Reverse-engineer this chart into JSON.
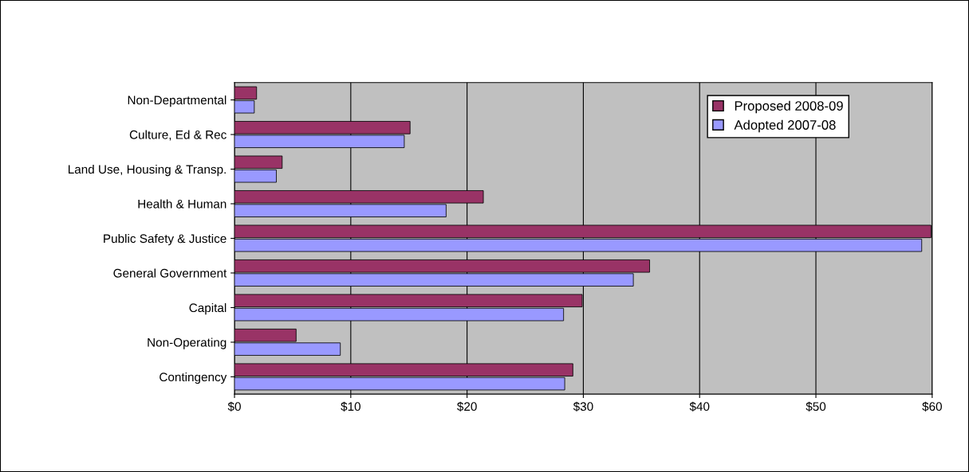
{
  "chart_data": {
    "type": "bar",
    "orientation": "horizontal",
    "categories": [
      "Non-Departmental",
      "Culture, Ed & Rec",
      "Land Use, Housing & Transp.",
      "Health & Human",
      "Public Safety & Justice",
      "General Government",
      "Capital",
      "Non-Operating",
      "Contingency"
    ],
    "series": [
      {
        "name": "Proposed 2008-09",
        "color": "#993366",
        "values": [
          1.9,
          15.1,
          4.1,
          21.4,
          59.9,
          35.7,
          29.9,
          5.3,
          29.1
        ]
      },
      {
        "name": "Adopted 2007-08",
        "color": "#9999ff",
        "values": [
          1.7,
          14.6,
          3.6,
          18.2,
          59.1,
          34.3,
          28.3,
          9.1,
          28.4
        ]
      }
    ],
    "xlim": [
      0,
      60
    ],
    "xticks": [
      {
        "value": 0,
        "label": "$0"
      },
      {
        "value": 10,
        "label": "$10"
      },
      {
        "value": 20,
        "label": "$20"
      },
      {
        "value": 30,
        "label": "$30"
      },
      {
        "value": 40,
        "label": "$40"
      },
      {
        "value": 50,
        "label": "$50"
      },
      {
        "value": 60,
        "label": "$60"
      }
    ],
    "grid": "x",
    "legend": "top right"
  }
}
